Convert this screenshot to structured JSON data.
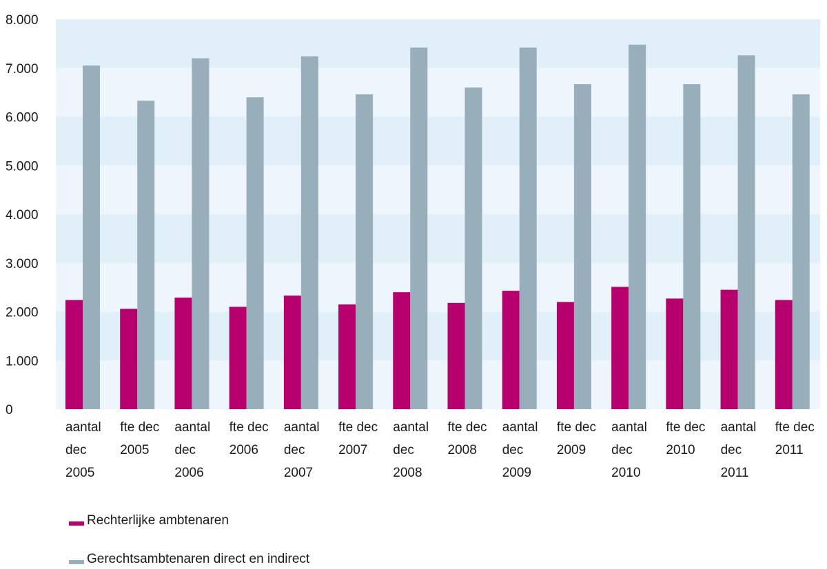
{
  "chart_data": {
    "type": "bar",
    "categories": [
      [
        "aantal",
        "dec",
        "2005"
      ],
      [
        "fte dec",
        "2005"
      ],
      [
        "aantal",
        "dec",
        "2006"
      ],
      [
        "fte dec",
        "2006"
      ],
      [
        "aantal",
        "dec",
        "2007"
      ],
      [
        "fte dec",
        "2007"
      ],
      [
        "aantal",
        "dec",
        "2008"
      ],
      [
        "fte dec",
        "2008"
      ],
      [
        "aantal",
        "dec",
        "2009"
      ],
      [
        "fte dec",
        "2009"
      ],
      [
        "aantal",
        "dec",
        "2010"
      ],
      [
        "fte dec",
        "2010"
      ],
      [
        "aantal",
        "dec",
        "2011"
      ],
      [
        "fte dec",
        "2011"
      ]
    ],
    "series": [
      {
        "name": "Rechterlijke ambtenaren",
        "color": "#b5006e",
        "values": [
          2240,
          2060,
          2290,
          2100,
          2330,
          2150,
          2400,
          2180,
          2430,
          2200,
          2510,
          2270,
          2450,
          2240
        ]
      },
      {
        "name": "Gerechtsambtenaren direct en indirect",
        "color": "#98aebb",
        "values": [
          7050,
          6330,
          7200,
          6400,
          7240,
          6460,
          7420,
          6600,
          7420,
          6670,
          7480,
          6670,
          7260,
          6460
        ]
      }
    ],
    "ylim": [
      0,
      8000
    ],
    "yticks": [
      "0",
      "1.000",
      "2.000",
      "3.000",
      "4.000",
      "5.000",
      "6.000",
      "7.000",
      "8.000"
    ],
    "grid": true,
    "band_colors": [
      "#eef5fc",
      "#e0eff8"
    ],
    "legend_position": "bottom-left",
    "title": "",
    "xlabel": "",
    "ylabel": ""
  }
}
